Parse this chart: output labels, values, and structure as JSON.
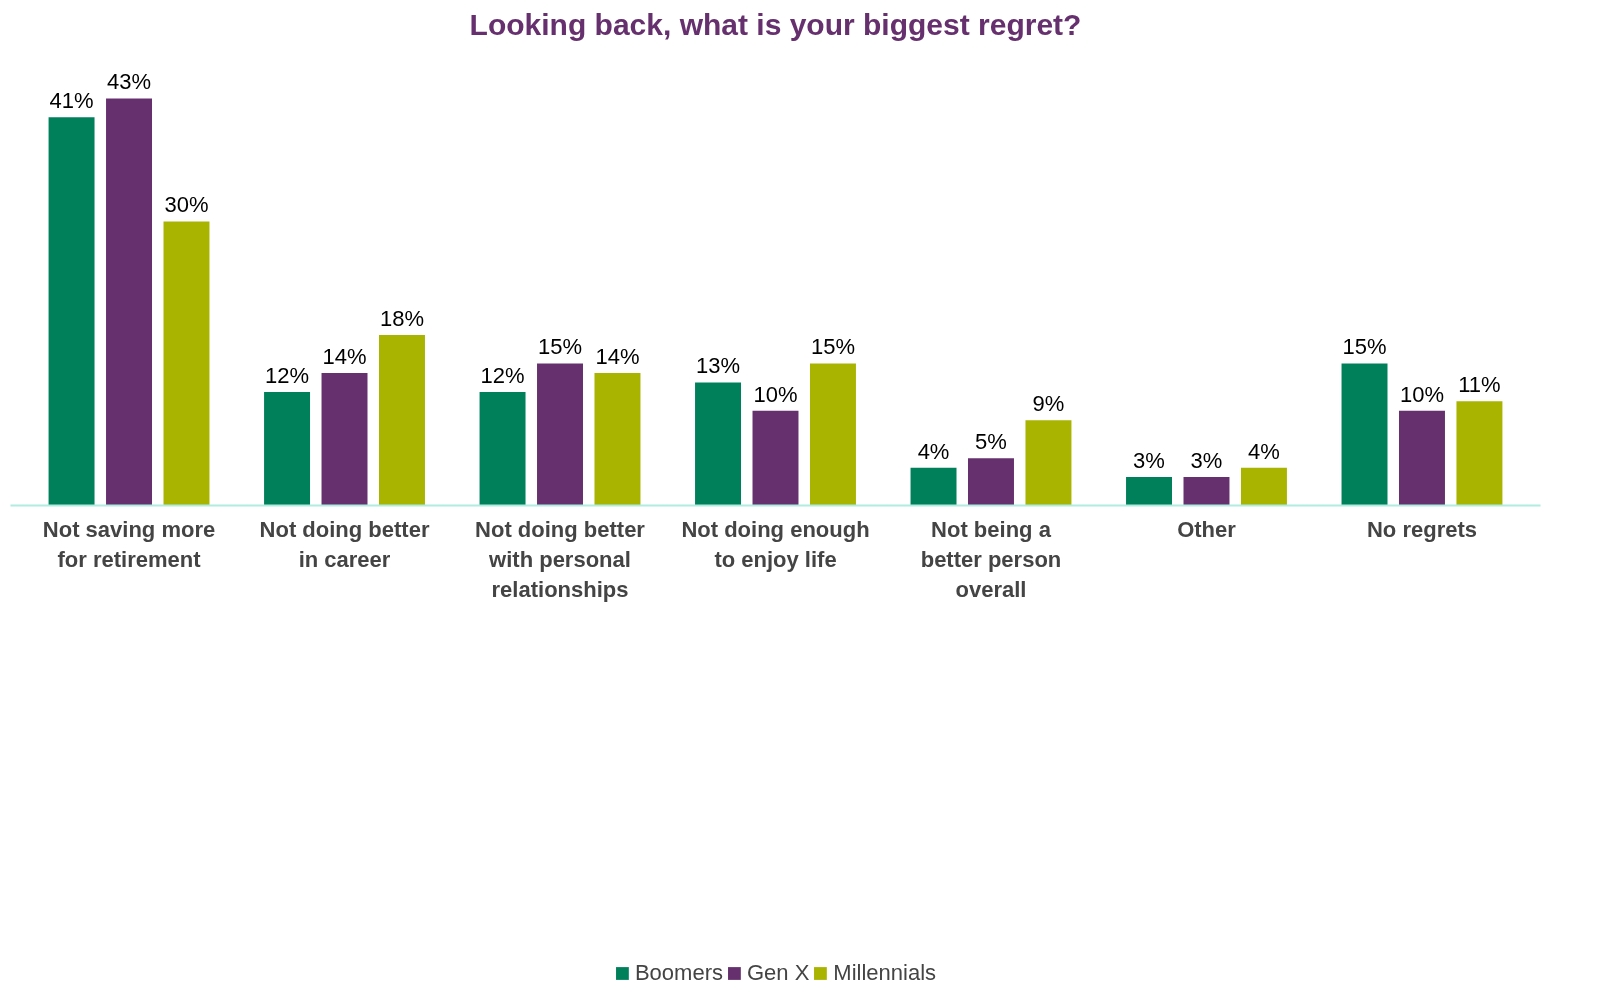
{
  "chart_data": {
    "type": "bar",
    "title": "Looking back, what is your biggest regret?",
    "categories": [
      "Not saving more for retirement",
      "Not doing better in career",
      "Not doing better with personal relationships",
      "Not doing enough to enjoy life",
      "Not being a better person overall",
      "Other",
      "No regrets"
    ],
    "series": [
      {
        "name": "Boomers",
        "color": "#00805a",
        "values": [
          41,
          12,
          12,
          13,
          4,
          3,
          15
        ],
        "value_labels": [
          "41%",
          "12%",
          "12%",
          "13%",
          "4%",
          "3%",
          "15%"
        ]
      },
      {
        "name": "Gen X",
        "color": "#66306e",
        "values": [
          43,
          14,
          15,
          10,
          5,
          3,
          10
        ],
        "value_labels": [
          "43%",
          "14%",
          "15%",
          "10%",
          "5%",
          "3%",
          "10%"
        ]
      },
      {
        "name": "Millennials",
        "color": "#a9b400",
        "values": [
          30,
          18,
          14,
          15,
          9,
          4,
          11
        ],
        "value_labels": [
          "30%",
          "18%",
          "14%",
          "15%",
          "9%",
          "4%",
          "11%"
        ]
      }
    ],
    "legend": "bottom",
    "grid": false,
    "tick_labels": "x"
  }
}
